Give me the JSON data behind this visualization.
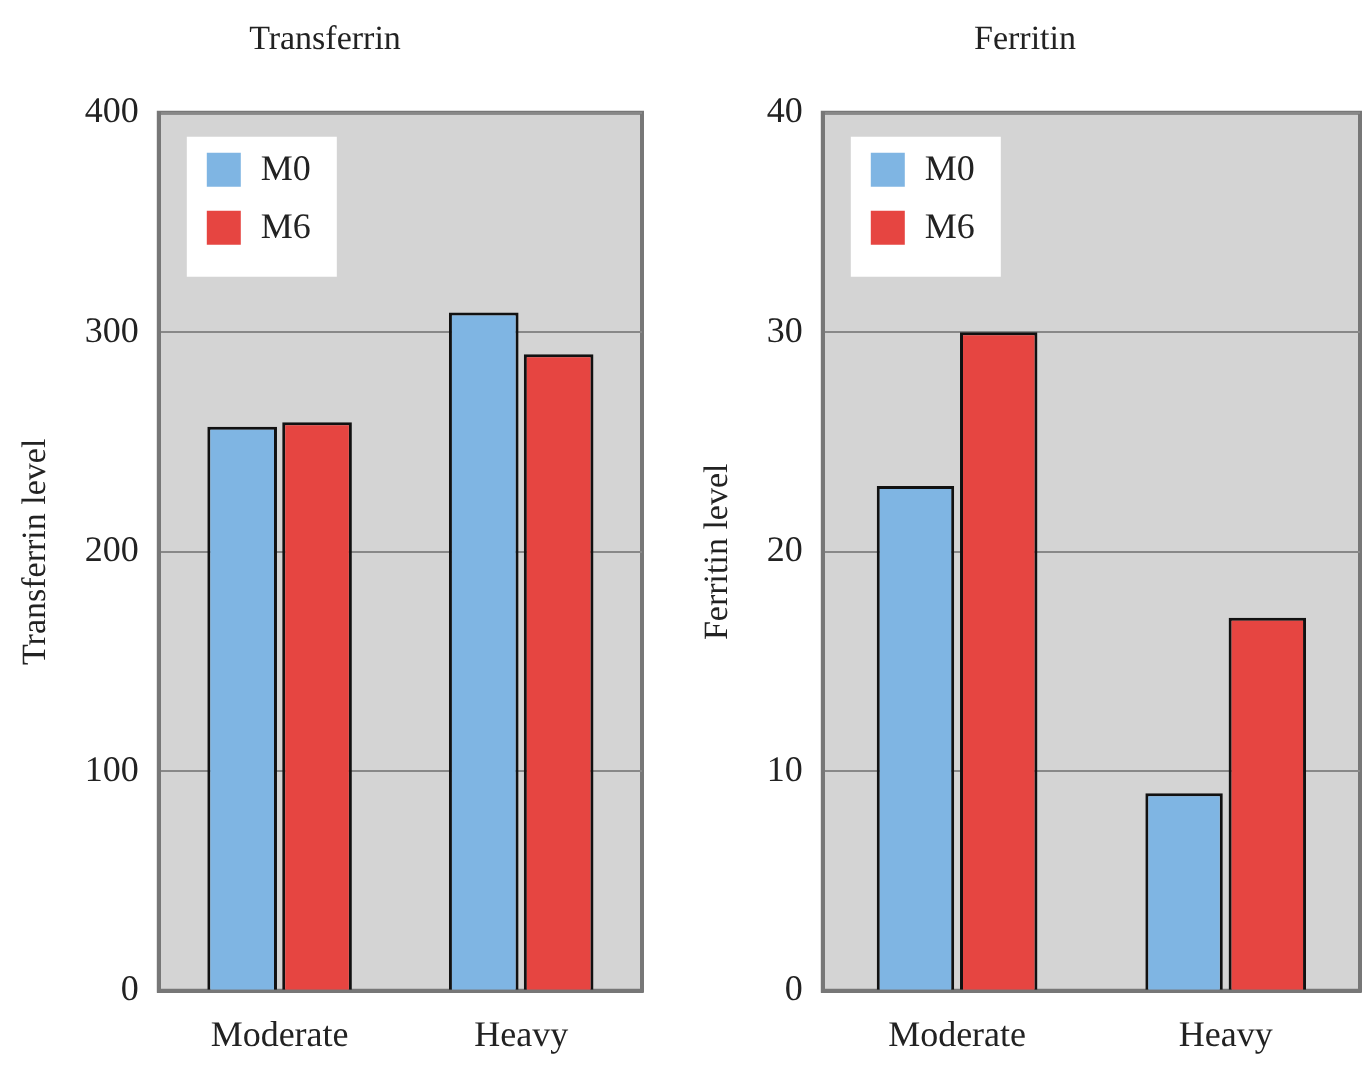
{
  "chart_data": [
    {
      "type": "bar",
      "title": "Transferrin",
      "ylabel": "Transferrin level",
      "categories": [
        "Moderate",
        "Heavy"
      ],
      "series": [
        {
          "name": "M0",
          "color": "#7fb5e3",
          "values": [
            257,
            309
          ]
        },
        {
          "name": "M6",
          "color": "#e64541",
          "values": [
            259,
            290
          ]
        }
      ],
      "ylim": [
        0,
        400
      ],
      "yticks": [
        0,
        100,
        200,
        300,
        400
      ],
      "grid": "y",
      "legend": "top left"
    },
    {
      "type": "bar",
      "title": "Ferritin",
      "ylabel": "Ferritin level",
      "categories": [
        "Moderate",
        "Heavy"
      ],
      "series": [
        {
          "name": "M0",
          "color": "#7fb5e3",
          "values": [
            23,
            9
          ]
        },
        {
          "name": "M6",
          "color": "#e64541",
          "values": [
            30,
            17
          ]
        }
      ],
      "ylim": [
        0,
        40
      ],
      "yticks": [
        0,
        10,
        20,
        30,
        40
      ],
      "grid": "y",
      "legend": "top left"
    }
  ]
}
